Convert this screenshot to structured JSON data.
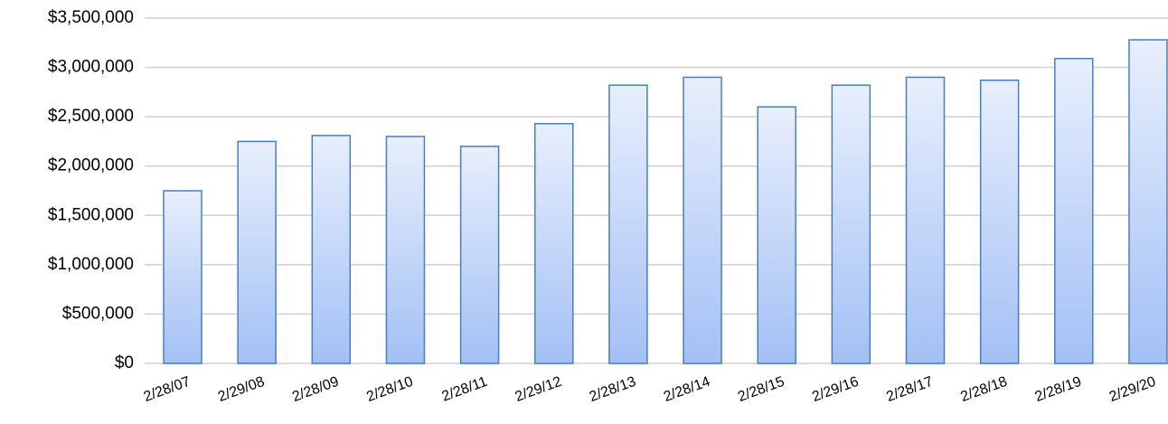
{
  "chart_data": {
    "type": "bar",
    "categories": [
      "2/28/07",
      "2/29/08",
      "2/28/09",
      "2/28/10",
      "2/28/11",
      "2/29/12",
      "2/28/13",
      "2/28/14",
      "2/28/15",
      "2/29/16",
      "2/28/17",
      "2/28/18",
      "2/28/19",
      "2/29/20"
    ],
    "values": [
      1750000,
      2250000,
      2310000,
      2300000,
      2200000,
      2430000,
      2820000,
      2900000,
      2600000,
      2820000,
      2900000,
      2870000,
      3090000,
      3280000
    ],
    "color": "#4a7ebb",
    "ylim": [
      0,
      3500000
    ],
    "yticks": [
      {
        "value": 0,
        "label": "$0"
      },
      {
        "value": 500000,
        "label": "$500,000"
      },
      {
        "value": 1000000,
        "label": "$1,000,000"
      },
      {
        "value": 1500000,
        "label": "$1,500,000"
      },
      {
        "value": 2000000,
        "label": "$2,000,000"
      },
      {
        "value": 2500000,
        "label": "$2,500,000"
      },
      {
        "value": 3000000,
        "label": "$3,000,000"
      },
      {
        "value": 3500000,
        "label": "$3,500,000"
      }
    ],
    "grid": true
  }
}
